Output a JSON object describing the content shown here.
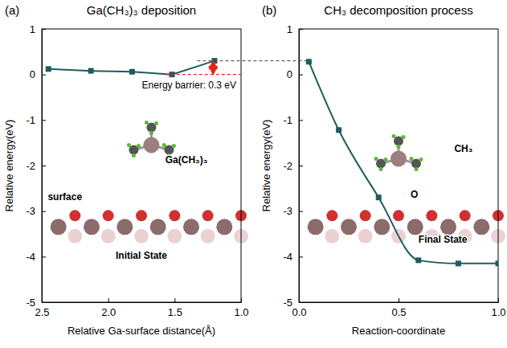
{
  "chart_data": [
    {
      "type": "line",
      "label": "(a)",
      "title": "Ga(CH₃)₃ deposition",
      "x_label": "Relative Ga-surface distance(Å)",
      "y_label": "Relative energy(eV)",
      "x": [
        2.45,
        2.13,
        1.82,
        1.52,
        1.2
      ],
      "values": [
        0.12,
        0.08,
        0.06,
        0.0,
        0.3
      ],
      "color": "#1f5c5e",
      "marker": "square",
      "line_style": "solid",
      "xlim": [
        2.5,
        1.0
      ],
      "xticks": [
        {
          "value": 2.5,
          "label": "2.5"
        },
        {
          "value": 2.0,
          "label": "2.0"
        },
        {
          "value": 1.5,
          "label": "1.5"
        },
        {
          "value": 1.0,
          "label": "1.0"
        }
      ],
      "ylim": [
        -5,
        1
      ],
      "yticks": [
        -5,
        -4,
        -3,
        -2,
        -1,
        0,
        1
      ],
      "barrier": {
        "values": [
          0.0,
          0.3
        ],
        "label": "Energy barrier: 0.3 eV"
      },
      "annotations": [
        "Ga(CH₃)₃",
        "surface",
        "Initial State"
      ]
    },
    {
      "type": "line",
      "label": "(b)",
      "title": "CH₃ decomposition process",
      "x_label": "Reaction-coordinate",
      "y_label": "Relative energy(eV)",
      "x": [
        0.05,
        0.2,
        0.4,
        0.6,
        0.8,
        1.0
      ],
      "values": [
        0.28,
        -1.22,
        -2.7,
        -4.08,
        -4.15,
        -4.15
      ],
      "color": "#1f5c5e",
      "marker": "square",
      "line_style": "solid",
      "xlim": [
        0,
        1
      ],
      "xticks": [
        {
          "value": 0,
          "label": "0.0"
        },
        {
          "value": 0.5,
          "label": "0.5"
        },
        {
          "value": 1,
          "label": "1.0"
        }
      ],
      "ylim": [
        -5,
        1
      ],
      "yticks": [
        -5,
        -4,
        -3,
        -2,
        -1,
        0,
        1
      ],
      "annotations": [
        "Final State",
        "O",
        "CH₃"
      ]
    }
  ]
}
